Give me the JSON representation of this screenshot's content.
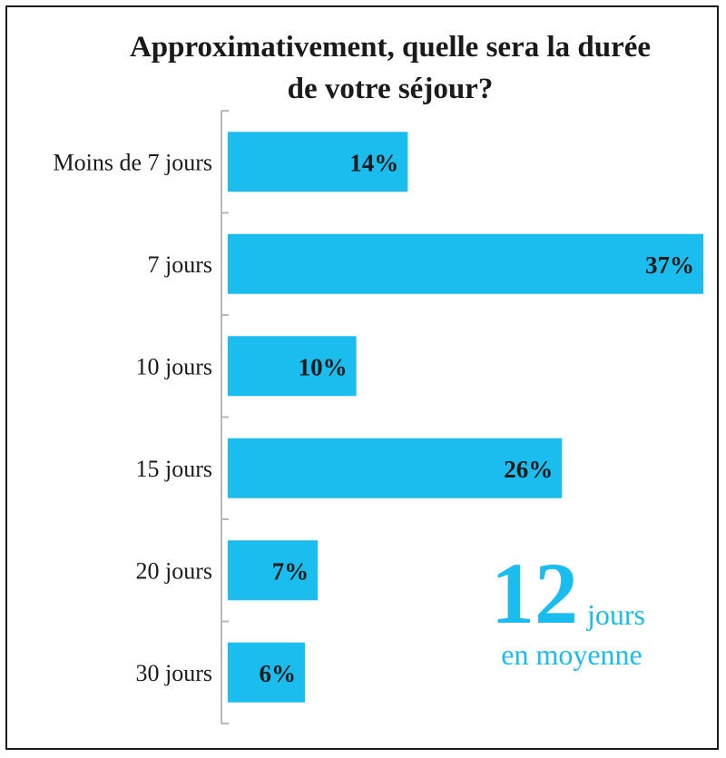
{
  "chart_data": {
    "type": "bar",
    "orientation": "horizontal",
    "title": [
      "Approximativement, quelle sera la durée",
      "de votre séjour?"
    ],
    "categories": [
      "Moins de 7 jours",
      "7 jours",
      "10 jours",
      "15 jours",
      "20 jours",
      "30 jours"
    ],
    "values": [
      14,
      37,
      10,
      26,
      7,
      6
    ],
    "value_labels": [
      "14%",
      "37%",
      "10%",
      "26%",
      "7%",
      "6%"
    ],
    "unit": "%",
    "xlim": [
      0,
      37
    ],
    "grid": false,
    "legend": "none"
  },
  "average": {
    "number": "12",
    "unit": "jours",
    "caption": "en moyenne"
  },
  "colors": {
    "bar": "#1bbdee",
    "accent": "#1bbdee",
    "text": "#1a1a1a",
    "axis": "#b8b8b8"
  }
}
